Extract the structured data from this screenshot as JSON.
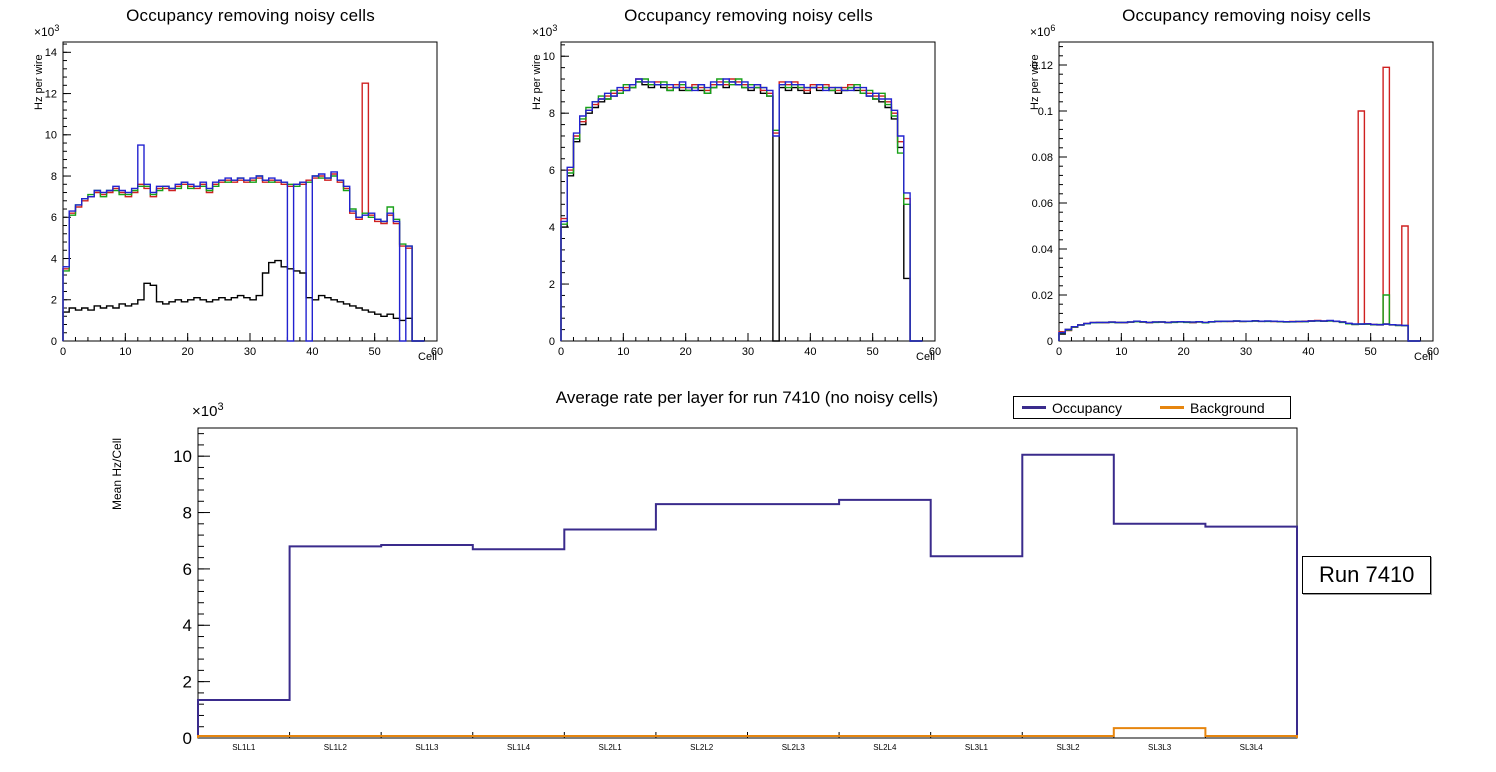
{
  "run_box": {
    "text": "Run 7410"
  },
  "chart_data": [
    {
      "id": "occupancy-noisy-cells-1",
      "type": "line",
      "style": "step-histogram",
      "title": "Occupancy removing noisy cells",
      "xlabel": "Cell",
      "ylabel": "Hz per wire",
      "scale": {
        "base": "×10",
        "exp": "3"
      },
      "xlim": [
        0,
        60
      ],
      "ylim": [
        0,
        14.5
      ],
      "xticks": [
        0,
        10,
        20,
        30,
        40,
        50,
        60
      ],
      "yticks": [
        0,
        2,
        4,
        6,
        8,
        10,
        12,
        14
      ],
      "x_minor": 2,
      "y_minor": 0.4,
      "bin_width": 1,
      "grid": false,
      "series": [
        {
          "name": "black",
          "color": "#000000",
          "values": [
            1.4,
            1.6,
            1.5,
            1.6,
            1.5,
            1.7,
            1.6,
            1.7,
            1.6,
            1.8,
            1.7,
            1.8,
            2.0,
            2.8,
            2.7,
            1.9,
            1.8,
            1.9,
            2.0,
            1.9,
            2.0,
            2.1,
            2.0,
            1.9,
            2.0,
            2.1,
            2.0,
            2.1,
            2.2,
            2.1,
            2.0,
            2.2,
            3.3,
            3.8,
            3.9,
            3.6,
            3.5,
            3.4,
            3.3,
            2.1,
            2.0,
            2.2,
            2.1,
            2.0,
            1.9,
            1.8,
            1.7,
            1.6,
            1.5,
            1.4,
            1.3,
            1.2,
            1.3,
            1.1,
            1.0,
            1.1,
            0,
            0
          ]
        },
        {
          "name": "red",
          "color": "#cf2020",
          "values": [
            3.5,
            6.2,
            6.5,
            6.8,
            7.0,
            7.2,
            7.1,
            7.2,
            7.4,
            7.2,
            7.0,
            7.2,
            7.6,
            7.4,
            7.0,
            7.4,
            7.4,
            7.3,
            7.5,
            7.6,
            7.5,
            7.4,
            7.6,
            7.2,
            7.6,
            7.7,
            7.8,
            7.7,
            7.8,
            7.7,
            7.8,
            7.9,
            7.7,
            7.8,
            7.7,
            7.6,
            7.5,
            7.6,
            7.6,
            7.8,
            7.9,
            8.0,
            7.8,
            8.1,
            7.7,
            7.4,
            6.2,
            5.9,
            12.5,
            6.1,
            5.8,
            5.7,
            6.1,
            5.7,
            4.6,
            4.5,
            0,
            0
          ]
        },
        {
          "name": "green",
          "color": "#18a118",
          "values": [
            3.4,
            6.1,
            6.6,
            6.9,
            7.1,
            7.3,
            7.0,
            7.3,
            7.3,
            7.1,
            7.1,
            7.3,
            7.5,
            7.5,
            7.1,
            7.3,
            7.5,
            7.4,
            7.4,
            7.7,
            7.4,
            7.5,
            7.5,
            7.3,
            7.5,
            7.8,
            7.7,
            7.8,
            7.9,
            7.8,
            7.7,
            8.0,
            7.8,
            7.7,
            7.8,
            7.7,
            7.6,
            7.5,
            7.7,
            7.7,
            8.0,
            7.9,
            7.9,
            8.0,
            7.8,
            7.3,
            6.4,
            6.0,
            6.2,
            6.0,
            5.9,
            5.8,
            6.5,
            5.9,
            4.7,
            4.6,
            0,
            0
          ]
        },
        {
          "name": "blue",
          "color": "#2222d0",
          "values": [
            3.6,
            6.3,
            6.6,
            6.9,
            7.0,
            7.3,
            7.2,
            7.3,
            7.5,
            7.3,
            7.2,
            7.4,
            9.5,
            7.6,
            7.2,
            7.5,
            7.5,
            7.4,
            7.6,
            7.7,
            7.6,
            7.5,
            7.7,
            7.4,
            7.7,
            7.8,
            7.9,
            7.8,
            7.9,
            7.8,
            7.9,
            8.0,
            7.8,
            7.9,
            7.8,
            7.7,
            0,
            7.6,
            7.7,
            0,
            8.0,
            8.1,
            7.9,
            8.2,
            7.8,
            7.5,
            6.3,
            6.0,
            6.1,
            6.2,
            5.9,
            5.8,
            6.2,
            5.8,
            0,
            4.6,
            0,
            0
          ]
        }
      ]
    },
    {
      "id": "occupancy-noisy-cells-2",
      "type": "line",
      "style": "step-histogram",
      "title": "Occupancy removing noisy cells",
      "xlabel": "Cell",
      "ylabel": "Hz per wire",
      "scale": {
        "base": "×10",
        "exp": "3"
      },
      "xlim": [
        0,
        60
      ],
      "ylim": [
        0,
        10.5
      ],
      "xticks": [
        0,
        10,
        20,
        30,
        40,
        50,
        60
      ],
      "yticks": [
        0,
        2,
        4,
        6,
        8,
        10
      ],
      "x_minor": 2,
      "y_minor": 0.4,
      "bin_width": 1,
      "grid": false,
      "series": [
        {
          "name": "black",
          "color": "#000000",
          "values": [
            4.0,
            5.8,
            7.0,
            7.6,
            8.0,
            8.2,
            8.4,
            8.5,
            8.6,
            8.7,
            8.8,
            8.9,
            9.1,
            9.0,
            8.9,
            9.0,
            8.9,
            8.8,
            8.9,
            8.8,
            8.8,
            8.9,
            8.8,
            8.7,
            8.9,
            9.0,
            8.9,
            9.1,
            9.0,
            8.9,
            8.8,
            8.9,
            8.7,
            8.6,
            0,
            8.9,
            8.8,
            8.9,
            8.8,
            8.7,
            8.9,
            8.8,
            8.9,
            8.8,
            8.7,
            8.8,
            8.9,
            8.8,
            8.7,
            8.6,
            8.5,
            8.4,
            8.2,
            7.8,
            6.8,
            2.2,
            0,
            0
          ]
        },
        {
          "name": "red",
          "color": "#cf2020",
          "values": [
            4.3,
            6.0,
            7.2,
            7.7,
            8.1,
            8.3,
            8.5,
            8.6,
            8.7,
            8.8,
            8.9,
            9.0,
            9.2,
            9.1,
            9.0,
            9.1,
            9.0,
            8.9,
            9.0,
            8.9,
            8.9,
            9.0,
            8.9,
            8.8,
            9.0,
            9.1,
            9.0,
            9.2,
            9.1,
            9.0,
            8.9,
            9.0,
            8.8,
            8.7,
            7.3,
            9.1,
            9.0,
            9.1,
            8.9,
            8.8,
            9.0,
            8.9,
            9.0,
            8.9,
            8.8,
            8.9,
            9.0,
            8.9,
            8.8,
            8.7,
            8.6,
            8.6,
            8.4,
            8.0,
            7.0,
            5.0,
            0,
            0
          ]
        },
        {
          "name": "green",
          "color": "#18a118",
          "values": [
            4.1,
            5.9,
            7.1,
            7.8,
            8.2,
            8.4,
            8.6,
            8.5,
            8.8,
            8.7,
            9.0,
            8.9,
            9.1,
            9.2,
            9.0,
            9.0,
            9.1,
            8.8,
            8.9,
            9.0,
            8.8,
            8.9,
            9.0,
            8.7,
            8.9,
            9.2,
            9.1,
            9.0,
            9.2,
            8.9,
            9.0,
            8.9,
            8.9,
            8.6,
            7.4,
            9.0,
            8.9,
            9.0,
            8.9,
            8.9,
            8.9,
            9.0,
            8.9,
            8.8,
            8.9,
            8.8,
            8.9,
            9.0,
            8.7,
            8.8,
            8.5,
            8.7,
            8.3,
            7.9,
            6.6,
            4.8,
            0,
            0
          ]
        },
        {
          "name": "blue",
          "color": "#2222d0",
          "values": [
            4.2,
            6.1,
            7.3,
            7.9,
            8.1,
            8.4,
            8.5,
            8.7,
            8.6,
            8.9,
            8.8,
            9.0,
            9.2,
            9.1,
            9.1,
            9.0,
            9.0,
            9.0,
            8.9,
            9.1,
            8.9,
            8.8,
            9.0,
            8.9,
            9.1,
            9.0,
            9.2,
            9.1,
            9.0,
            9.1,
            8.9,
            9.0,
            8.9,
            8.8,
            7.2,
            9.0,
            9.1,
            9.0,
            9.0,
            8.9,
            8.9,
            9.0,
            8.8,
            8.9,
            8.9,
            8.8,
            8.8,
            8.9,
            8.9,
            8.6,
            8.7,
            8.5,
            8.5,
            8.1,
            7.2,
            5.2,
            0,
            0
          ]
        }
      ]
    },
    {
      "id": "occupancy-noisy-cells-3",
      "type": "line",
      "style": "step-histogram",
      "title": "Occupancy removing noisy cells",
      "xlabel": "Cell",
      "ylabel": "Hz per wire",
      "scale": {
        "base": "×10",
        "exp": "6"
      },
      "xlim": [
        0,
        60
      ],
      "ylim": [
        0,
        0.13
      ],
      "xticks": [
        0,
        10,
        20,
        30,
        40,
        50,
        60
      ],
      "yticks": [
        0,
        0.02,
        0.04,
        0.06,
        0.08,
        0.1,
        0.12
      ],
      "x_minor": 2,
      "y_minor": 0.004,
      "bin_width": 1,
      "grid": false,
      "series": [
        {
          "name": "black",
          "color": "#000000",
          "values": [
            0.003,
            0.005,
            0.006,
            0.007,
            0.0075,
            0.008,
            0.008,
            0.008,
            0.0082,
            0.008,
            0.008,
            0.0082,
            0.0085,
            0.0082,
            0.008,
            0.0082,
            0.0082,
            0.008,
            0.0082,
            0.0083,
            0.0082,
            0.008,
            0.0083,
            0.008,
            0.0083,
            0.0085,
            0.0085,
            0.0085,
            0.0086,
            0.0085,
            0.0086,
            0.0087,
            0.0085,
            0.0086,
            0.0085,
            0.0084,
            0.0083,
            0.0084,
            0.0084,
            0.0085,
            0.0087,
            0.0088,
            0.0086,
            0.0088,
            0.0085,
            0.0082,
            0.0075,
            0.0072,
            0.0073,
            0.0074,
            0.0071,
            0.007,
            0.0074,
            0.007,
            0.0068,
            0.0067,
            0,
            0
          ]
        },
        {
          "name": "red",
          "color": "#cf2020",
          "values": [
            0.004,
            0.0045,
            0.006,
            0.007,
            0.0076,
            0.008,
            0.0081,
            0.008,
            0.0082,
            0.0081,
            0.008,
            0.0082,
            0.0086,
            0.0083,
            0.008,
            0.0082,
            0.0083,
            0.0081,
            0.0082,
            0.0084,
            0.0082,
            0.0081,
            0.0083,
            0.008,
            0.0084,
            0.0085,
            0.0086,
            0.0085,
            0.0086,
            0.0085,
            0.0086,
            0.0088,
            0.0086,
            0.0086,
            0.0085,
            0.0084,
            0.0084,
            0.0085,
            0.0084,
            0.0086,
            0.0087,
            0.0089,
            0.0087,
            0.0088,
            0.0086,
            0.0083,
            0.0076,
            0.0073,
            0.1,
            0.0075,
            0.0072,
            0.0071,
            0.119,
            0.0071,
            0.0069,
            0.05,
            0,
            0
          ]
        },
        {
          "name": "green",
          "color": "#18a118",
          "values": [
            0.0035,
            0.0048,
            0.0061,
            0.0069,
            0.0075,
            0.0079,
            0.008,
            0.0081,
            0.0081,
            0.008,
            0.0081,
            0.0082,
            0.0084,
            0.0083,
            0.0081,
            0.0081,
            0.0083,
            0.008,
            0.0081,
            0.0083,
            0.0081,
            0.0082,
            0.0083,
            0.0079,
            0.0083,
            0.0086,
            0.0085,
            0.0086,
            0.0087,
            0.0085,
            0.0085,
            0.0087,
            0.0086,
            0.0085,
            0.0086,
            0.0084,
            0.0083,
            0.0083,
            0.0085,
            0.0084,
            0.0086,
            0.0087,
            0.0086,
            0.0087,
            0.0086,
            0.0081,
            0.0075,
            0.0072,
            0.0074,
            0.0073,
            0.0071,
            0.0072,
            0.02,
            0.0071,
            0.0068,
            0.0067,
            0,
            0
          ]
        },
        {
          "name": "blue",
          "color": "#2222d0",
          "values": [
            0.0036,
            0.005,
            0.0062,
            0.007,
            0.0076,
            0.008,
            0.0081,
            0.0081,
            0.0082,
            0.0081,
            0.0081,
            0.0083,
            0.0086,
            0.0084,
            0.0081,
            0.0083,
            0.0083,
            0.0081,
            0.0083,
            0.0084,
            0.0083,
            0.0082,
            0.0084,
            0.0081,
            0.0084,
            0.0085,
            0.0086,
            0.0086,
            0.0087,
            0.0086,
            0.0086,
            0.0088,
            0.0086,
            0.0087,
            0.0086,
            0.0085,
            0.0084,
            0.0084,
            0.0085,
            0.0085,
            0.0087,
            0.0088,
            0.0087,
            0.0089,
            0.0086,
            0.0083,
            0.0077,
            0.0074,
            0.0074,
            0.0075,
            0.0072,
            0.0071,
            0.0073,
            0.0071,
            0.0069,
            0.0068,
            0,
            0
          ]
        }
      ]
    },
    {
      "id": "average-rate-per-layer",
      "type": "line",
      "style": "step-histogram",
      "title": "Average rate per layer for run 7410 (no noisy cells)",
      "ylabel": "Mean Hz/Cell",
      "scale": {
        "base": "×10",
        "exp": "3"
      },
      "categories": [
        "SL1L1",
        "SL1L2",
        "SL1L3",
        "SL1L4",
        "SL2L1",
        "SL2L2",
        "SL2L3",
        "SL2L4",
        "SL3L1",
        "SL3L2",
        "SL3L3",
        "SL3L4"
      ],
      "ylim": [
        0,
        11
      ],
      "yticks": [
        0,
        2,
        4,
        6,
        8,
        10
      ],
      "y_minor": 0.4,
      "bin_width": 1,
      "grid": false,
      "legend": [
        {
          "label": "Occupancy",
          "color": "#3a2b8c"
        },
        {
          "label": "Background",
          "color": "#e6850e"
        }
      ],
      "series": [
        {
          "name": "Occupancy",
          "color": "#3a2b8c",
          "values": [
            1.35,
            6.8,
            6.85,
            6.7,
            7.4,
            8.3,
            8.3,
            8.45,
            6.45,
            10.05,
            7.6,
            7.5
          ]
        },
        {
          "name": "Background",
          "color": "#e6850e",
          "values": [
            0.07,
            0.07,
            0.07,
            0.07,
            0.07,
            0.07,
            0.07,
            0.07,
            0.07,
            0.07,
            0.35,
            0.07
          ]
        }
      ]
    }
  ]
}
